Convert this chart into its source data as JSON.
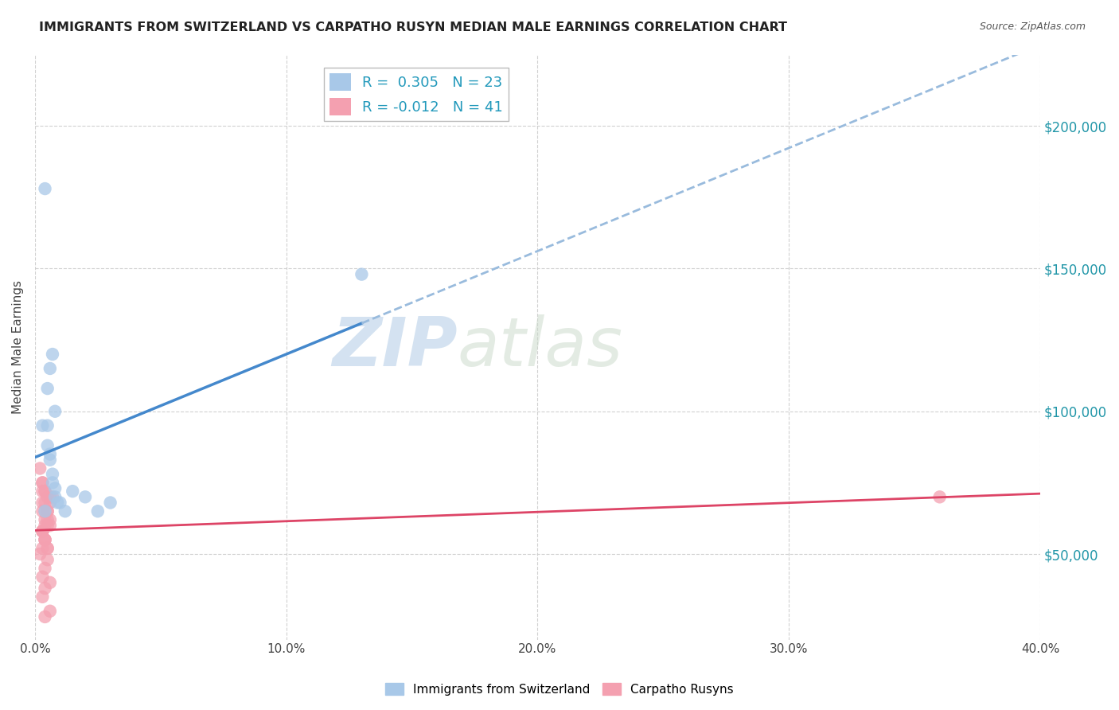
{
  "title": "IMMIGRANTS FROM SWITZERLAND VS CARPATHO RUSYN MEDIAN MALE EARNINGS CORRELATION CHART",
  "source": "Source: ZipAtlas.com",
  "ylabel": "Median Male Earnings",
  "xlim": [
    0.0,
    0.4
  ],
  "ylim": [
    20000,
    225000
  ],
  "yticks": [
    50000,
    100000,
    150000,
    200000
  ],
  "ytick_labels": [
    "$50,000",
    "$100,000",
    "$150,000",
    "$200,000"
  ],
  "xticks": [
    0.0,
    0.1,
    0.2,
    0.3,
    0.4
  ],
  "xtick_labels": [
    "0.0%",
    "10.0%",
    "20.0%",
    "30.0%",
    "40.0%"
  ],
  "legend_labels": [
    "Immigrants from Switzerland",
    "Carpatho Rusyns"
  ],
  "legend_R": [
    "0.305",
    "-0.012"
  ],
  "legend_N": [
    "23",
    "41"
  ],
  "scatter_switzerland_x": [
    0.004,
    0.005,
    0.006,
    0.007,
    0.008,
    0.003,
    0.005,
    0.006,
    0.007,
    0.008,
    0.009,
    0.004,
    0.005,
    0.006,
    0.007,
    0.008,
    0.01,
    0.012,
    0.015,
    0.02,
    0.025,
    0.03,
    0.13
  ],
  "scatter_switzerland_y": [
    178000,
    108000,
    115000,
    120000,
    100000,
    95000,
    88000,
    83000,
    78000,
    73000,
    68000,
    65000,
    95000,
    85000,
    75000,
    70000,
    68000,
    65000,
    72000,
    70000,
    65000,
    68000,
    148000
  ],
  "scatter_carpatho_x": [
    0.002,
    0.003,
    0.004,
    0.005,
    0.006,
    0.003,
    0.004,
    0.005,
    0.003,
    0.004,
    0.003,
    0.002,
    0.005,
    0.004,
    0.003,
    0.006,
    0.004,
    0.003,
    0.005,
    0.004,
    0.003,
    0.004,
    0.005,
    0.006,
    0.003,
    0.004,
    0.005,
    0.006,
    0.003,
    0.004,
    0.005,
    0.006,
    0.003,
    0.004,
    0.005,
    0.006,
    0.007,
    0.003,
    0.004,
    0.36,
    0.004
  ],
  "scatter_carpatho_y": [
    80000,
    75000,
    72000,
    70000,
    68000,
    65000,
    62000,
    60000,
    58000,
    55000,
    52000,
    50000,
    48000,
    45000,
    42000,
    40000,
    38000,
    35000,
    65000,
    60000,
    58000,
    55000,
    52000,
    70000,
    68000,
    65000,
    62000,
    60000,
    58000,
    55000,
    52000,
    30000,
    72000,
    68000,
    65000,
    62000,
    70000,
    75000,
    72000,
    70000,
    28000
  ],
  "color_switzerland": "#a8c8e8",
  "color_carpatho": "#f4a0b0",
  "trendline_color_switzerland_solid": "#4488cc",
  "trendline_color_switzerland_dash": "#99bbdd",
  "trendline_color_carpatho": "#dd4466",
  "background_color": "#ffffff",
  "watermark_zip": "ZIP",
  "watermark_atlas": "atlas",
  "grid_color": "#cccccc",
  "ytick_color": "#2196a8",
  "xtick_color": "#444444"
}
